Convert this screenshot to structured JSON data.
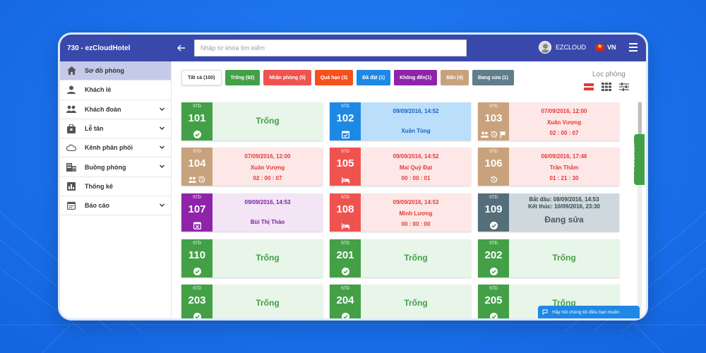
{
  "header": {
    "brand": "730 - ezCloudHotel",
    "search_placeholder": "Nhập từ khóa tìm kiếm",
    "user": "EZCLOUD",
    "language": "VN"
  },
  "sidebar": {
    "items": [
      {
        "label": "Sơ đồ phòng",
        "icon": "home-icon",
        "active": true,
        "expandable": false
      },
      {
        "label": "Khách lẻ",
        "icon": "person-icon",
        "active": false,
        "expandable": false
      },
      {
        "label": "Khách đoàn",
        "icon": "group-icon",
        "active": false,
        "expandable": true
      },
      {
        "label": "Lễ tân",
        "icon": "bag-icon",
        "active": false,
        "expandable": true
      },
      {
        "label": "Kênh phân phối",
        "icon": "cloud-icon",
        "active": false,
        "expandable": true
      },
      {
        "label": "Buồng phòng",
        "icon": "building-icon",
        "active": false,
        "expandable": true
      },
      {
        "label": "Thống kê",
        "icon": "chart-icon",
        "active": false,
        "expandable": false
      },
      {
        "label": "Báo cáo",
        "icon": "calendar-icon",
        "active": false,
        "expandable": true
      }
    ]
  },
  "filters": [
    {
      "label": "Tất cả (100)",
      "color": "#ffffff",
      "kind": "all"
    },
    {
      "label": "Trống (92)",
      "color": "#43a047"
    },
    {
      "label": "Nhận phòng (5)",
      "color": "#ef5350"
    },
    {
      "label": "Quá hạn (3)",
      "color": "#f4511e"
    },
    {
      "label": "Đã đặt (1)",
      "color": "#1e88e5"
    },
    {
      "label": "Không đến(1)",
      "color": "#8e24aa"
    },
    {
      "label": "Bẩn (4)",
      "color": "#c8a27c"
    },
    {
      "label": "Đang sửa (1)",
      "color": "#607d8b"
    }
  ],
  "filter_title": "Lọc phòng",
  "colors": {
    "empty_left": "#43a047",
    "empty_body": "#e8f5e9",
    "empty_text": "#43a047",
    "dirty_left": "#c8a27c",
    "occupied_left": "#ef5350",
    "occupied_body": "#fde7e7",
    "occupied_text": "#e53935",
    "booked_left": "#1e88e5",
    "booked_body": "#bbdefb",
    "booked_text": "#1565c0",
    "noshow_left": "#8e24aa",
    "noshow_body": "#f3e5f5",
    "noshow_text": "#7b1fa2",
    "repair_left": "#546e7a",
    "repair_body": "#cfd8dc",
    "repair_text": "#455a64"
  },
  "rooms": [
    {
      "type": "STD",
      "number": "101",
      "status": "empty",
      "text": "Trống",
      "icons": [
        "check-circle-icon"
      ]
    },
    {
      "type": "STD",
      "number": "102",
      "status": "booked",
      "line1": "09/09/2016, 14:52",
      "line2": "Xuân Tùng",
      "icons": [
        "calendar-check-icon"
      ]
    },
    {
      "type": "STD",
      "number": "103",
      "status": "occupied",
      "left": "dirty",
      "line1": "07/09/2016, 12:00",
      "line2": "Xuân Vượng",
      "line3": "02 :  00 :  07",
      "icons": [
        "group-icon",
        "history-icon",
        "flag-icon"
      ]
    },
    {
      "type": "STD",
      "number": "104",
      "status": "occupied",
      "left": "dirty",
      "line1": "07/09/2016, 12:00",
      "line2": "Xuân Vượng",
      "line3": "02 :  00 :  07",
      "icons": [
        "group-icon",
        "history-icon"
      ]
    },
    {
      "type": "STD",
      "number": "105",
      "status": "occupied",
      "line1": "09/09/2016, 14:52",
      "line2": "Mai Quý Đạt",
      "line3": "00 :  00 :  01",
      "icons": [
        "bed-icon"
      ]
    },
    {
      "type": "STD",
      "number": "106",
      "status": "occupied",
      "left": "dirty",
      "line1": "06/09/2016, 17:46",
      "line2": "Trần Thắm",
      "line3": "01 :  21 :  30",
      "icons": [
        "history-icon"
      ]
    },
    {
      "type": "STD",
      "number": "107",
      "status": "noshow",
      "line1": "09/09/2016, 14:53",
      "line2": "Bùi Thị Thảo",
      "icons": [
        "calendar-x-icon"
      ]
    },
    {
      "type": "STD",
      "number": "108",
      "status": "occupied",
      "line1": "09/09/2016, 14:53",
      "line2": "Minh Lương",
      "line3": "00 :  00 :  00",
      "icons": [
        "bed-icon"
      ]
    },
    {
      "type": "STD",
      "number": "109",
      "status": "repair",
      "line1": "Bắt đầu: 08/09/2016, 14:53",
      "line1b": "Kết thúc: 10/09/2016, 23:30",
      "line2": "Đang sửa",
      "icons": [
        "check-circle-icon"
      ]
    },
    {
      "type": "STD",
      "number": "110",
      "status": "empty",
      "text": "Trống",
      "icons": [
        "check-circle-icon"
      ]
    },
    {
      "type": "STD",
      "number": "201",
      "status": "empty",
      "text": "Trống",
      "icons": [
        "check-circle-icon"
      ]
    },
    {
      "type": "STD",
      "number": "202",
      "status": "empty",
      "text": "Trống",
      "icons": [
        "check-circle-icon"
      ]
    },
    {
      "type": "STD",
      "number": "203",
      "status": "empty",
      "text": "Trống",
      "icons": [
        "check-circle-icon"
      ]
    },
    {
      "type": "STD",
      "number": "204",
      "status": "empty",
      "text": "Trống",
      "icons": [
        "check-circle-icon"
      ]
    },
    {
      "type": "STD",
      "number": "205",
      "status": "empty",
      "text": "Trống",
      "icons": [
        "check-circle-icon"
      ]
    }
  ],
  "feedback": "Feedback",
  "chat": "Hãy hỏi chúng tôi điều bạn muốn"
}
